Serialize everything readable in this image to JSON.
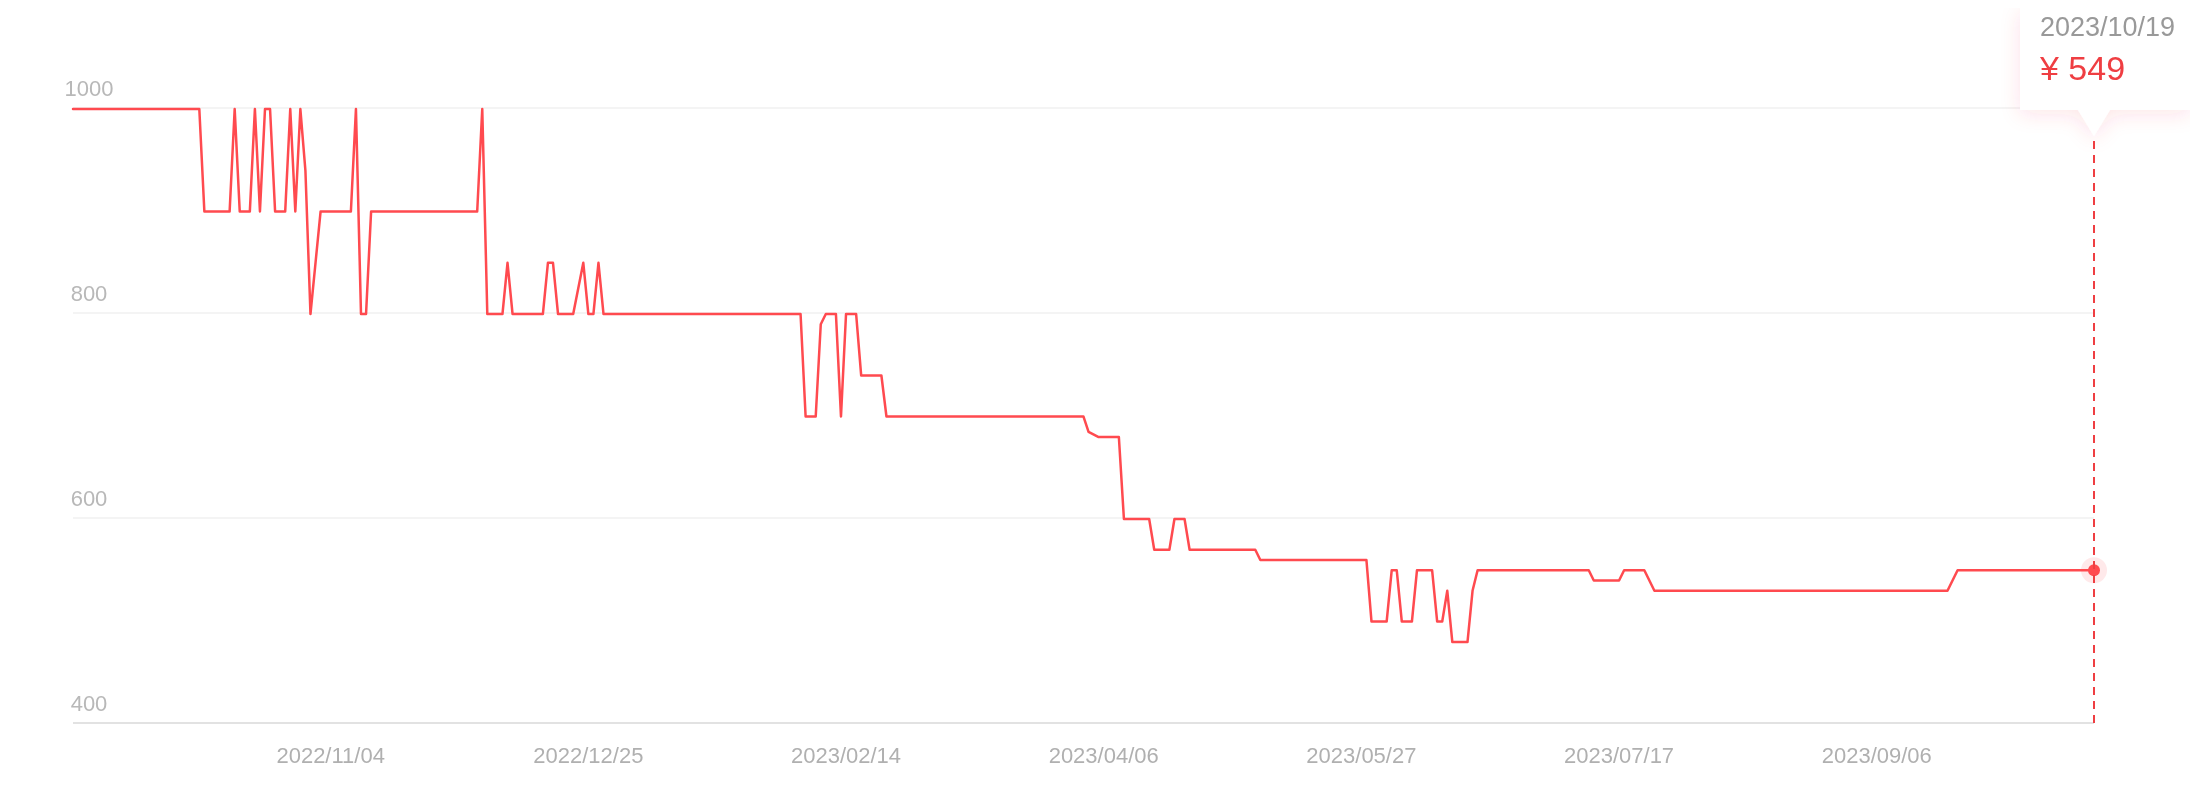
{
  "chart_data": {
    "type": "line",
    "xlim": [
      "2022-09-14",
      "2023-10-19"
    ],
    "ylim": [
      400,
      1000
    ],
    "xticks": [
      {
        "value": "2022-11-04",
        "label": "2022/11/04"
      },
      {
        "value": "2022-12-25",
        "label": "2022/12/25"
      },
      {
        "value": "2023-02-14",
        "label": "2023/02/14"
      },
      {
        "value": "2023-04-06",
        "label": "2023/04/06"
      },
      {
        "value": "2023-05-27",
        "label": "2023/05/27"
      },
      {
        "value": "2023-07-17",
        "label": "2023/07/17"
      },
      {
        "value": "2023-09-06",
        "label": "2023/09/06"
      }
    ],
    "yticks": [
      400,
      600,
      800,
      1000
    ],
    "grid": "y",
    "marker": "none",
    "line_style": "solid",
    "ref_lines": [
      {
        "axis": "x",
        "value": "2023-10-19",
        "color": "#ef3e42",
        "line_style": "dashed"
      }
    ],
    "annotations": [
      "2023/10/19",
      "¥ 549"
    ],
    "series": [
      {
        "color": "#ff4a4f",
        "x": [
          "2022-09-14",
          "2022-10-09",
          "2022-10-10",
          "2022-10-15",
          "2022-10-16",
          "2022-10-17",
          "2022-10-19",
          "2022-10-20",
          "2022-10-21",
          "2022-10-22",
          "2022-10-23",
          "2022-10-24",
          "2022-10-26",
          "2022-10-27",
          "2022-10-28",
          "2022-10-29",
          "2022-10-30",
          "2022-10-31",
          "2022-11-02",
          "2022-11-08",
          "2022-11-09",
          "2022-11-10",
          "2022-11-11",
          "2022-11-12",
          "2022-12-03",
          "2022-12-04",
          "2022-12-05",
          "2022-12-08",
          "2022-12-09",
          "2022-12-10",
          "2022-12-16",
          "2022-12-17",
          "2022-12-18",
          "2022-12-19",
          "2022-12-22",
          "2022-12-24",
          "2022-12-25",
          "2022-12-26",
          "2022-12-27",
          "2022-12-28",
          "2022-12-29",
          "2023-02-05",
          "2023-02-06",
          "2023-02-08",
          "2023-02-09",
          "2023-02-10",
          "2023-02-12",
          "2023-02-13",
          "2023-02-14",
          "2023-02-16",
          "2023-02-17",
          "2023-02-21",
          "2023-02-22",
          "2023-04-02",
          "2023-04-03",
          "2023-04-05",
          "2023-04-09",
          "2023-04-10",
          "2023-04-15",
          "2023-04-16",
          "2023-04-19",
          "2023-04-20",
          "2023-04-22",
          "2023-04-23",
          "2023-05-06",
          "2023-05-07",
          "2023-05-28",
          "2023-05-29",
          "2023-06-01",
          "2023-06-02",
          "2023-06-03",
          "2023-06-04",
          "2023-06-06",
          "2023-06-07",
          "2023-06-10",
          "2023-06-11",
          "2023-06-12",
          "2023-06-13",
          "2023-06-14",
          "2023-06-17",
          "2023-06-18",
          "2023-06-19",
          "2023-07-11",
          "2023-07-12",
          "2023-07-17",
          "2023-07-18",
          "2023-07-22",
          "2023-07-24",
          "2023-09-20",
          "2023-09-22",
          "2023-10-19"
        ],
        "values": [
          999,
          999,
          899,
          899,
          999,
          899,
          899,
          999,
          899,
          999,
          999,
          899,
          899,
          999,
          899,
          999,
          939,
          799,
          899,
          899,
          999,
          799,
          799,
          899,
          899,
          999,
          799,
          799,
          849,
          799,
          799,
          849,
          849,
          799,
          799,
          849,
          799,
          799,
          849,
          799,
          799,
          799,
          699,
          699,
          789,
          799,
          799,
          699,
          799,
          799,
          739,
          739,
          699,
          699,
          684,
          679,
          679,
          599,
          599,
          569,
          569,
          599,
          599,
          569,
          569,
          559,
          559,
          499,
          499,
          549,
          549,
          499,
          499,
          549,
          549,
          499,
          499,
          529,
          479,
          479,
          529,
          549,
          549,
          539,
          539,
          549,
          549,
          529,
          529,
          549,
          549
        ]
      }
    ]
  }
}
